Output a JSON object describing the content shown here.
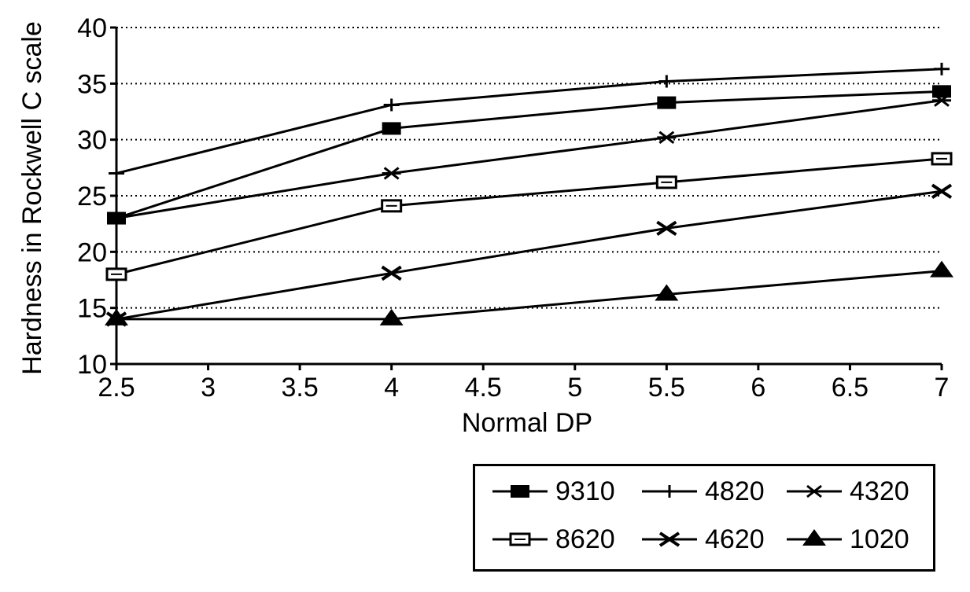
{
  "chart_data": {
    "type": "line",
    "xlabel": "Normal DP",
    "ylabel": "Hardness in Rockwell C scale",
    "xlim": [
      2.5,
      7
    ],
    "ylim": [
      10,
      40
    ],
    "x_ticks": [
      "2.5",
      "3",
      "3.5",
      "4",
      "4.5",
      "5",
      "5.5",
      "6",
      "6.5",
      "7"
    ],
    "y_ticks": [
      "10",
      "15",
      "20",
      "25",
      "30",
      "35",
      "40"
    ],
    "grid": "horizontal dotted",
    "legend_position": "bottom-right",
    "x": [
      2.5,
      4,
      5.5,
      7
    ],
    "series": [
      {
        "name": "9310",
        "marker": "filled-square",
        "values": [
          23,
          31,
          33.3,
          34.3
        ]
      },
      {
        "name": "4820",
        "marker": "plus",
        "values": [
          27,
          33.1,
          35.2,
          36.3
        ]
      },
      {
        "name": "4320",
        "marker": "star",
        "values": [
          23,
          27,
          30.2,
          33.5
        ]
      },
      {
        "name": "8620",
        "marker": "open-square",
        "values": [
          18,
          24.1,
          26.2,
          28.3
        ]
      },
      {
        "name": "4620",
        "marker": "x",
        "values": [
          14,
          18.1,
          22.1,
          25.4
        ]
      },
      {
        "name": "1020",
        "marker": "filled-triangle",
        "values": [
          14,
          14,
          16.2,
          18.3
        ]
      }
    ]
  }
}
